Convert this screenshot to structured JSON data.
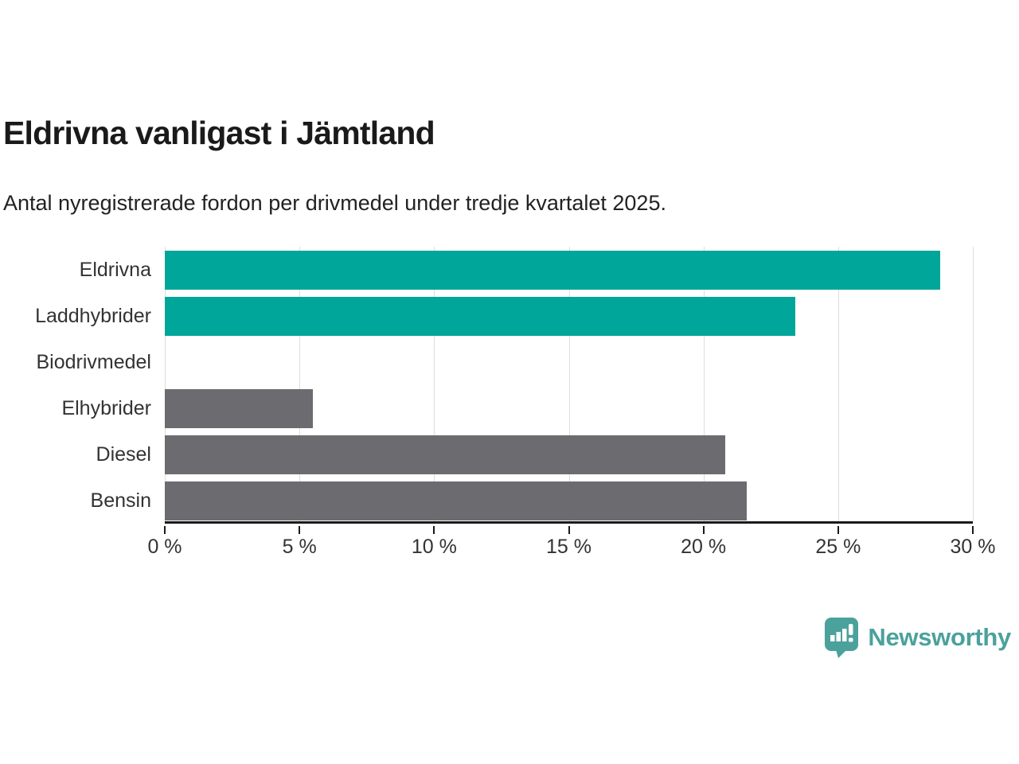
{
  "header": {
    "title": "Eldrivna vanligast i Jämtland",
    "subtitle": "Antal nyregistrerade fordon per drivmedel under tredje kvartalet 2025."
  },
  "chart_data": {
    "type": "bar",
    "orientation": "horizontal",
    "title": "Eldrivna vanligast i Jämtland",
    "subtitle": "Antal nyregistrerade fordon per drivmedel under tredje kvartalet 2025.",
    "categories": [
      "Eldrivna",
      "Laddhybrider",
      "Biodrivmedel",
      "Elhybrider",
      "Diesel",
      "Bensin"
    ],
    "values": [
      28.8,
      23.4,
      0,
      5.5,
      20.8,
      21.6
    ],
    "unit": "%",
    "bar_colors": [
      "#00A699",
      "#00A699",
      "#6C6B70",
      "#6C6B70",
      "#6C6B70",
      "#6C6B70"
    ],
    "xlim": [
      0,
      30
    ],
    "ticks": [
      0,
      5,
      10,
      15,
      20,
      25,
      30
    ],
    "tick_labels": [
      "0 %",
      "5 %",
      "10 %",
      "15 %",
      "20 %",
      "25 %",
      "30 %"
    ],
    "grid": true,
    "legend_position": "none",
    "grid_color": "#dddddd",
    "axis_color": "#1a1a1a",
    "label_color": "#333333"
  },
  "footer": {
    "brand_name": "Newsworthy",
    "brand_color": "#4BA19C",
    "logo_icon": "newsworthy-speech-bubble-bar-chart-icon"
  }
}
